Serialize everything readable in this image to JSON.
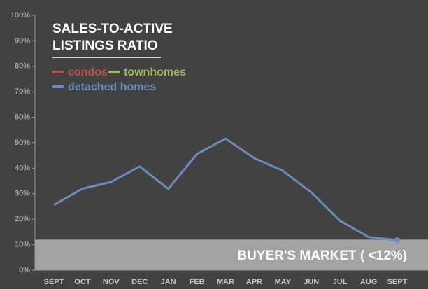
{
  "chart_data": {
    "type": "line",
    "title": [
      "SALES-TO-ACTIVE",
      "LISTINGS RATIO"
    ],
    "categories": [
      "SEPT",
      "OCT",
      "NOV",
      "DEC",
      "JAN",
      "FEB",
      "MAR",
      "APR",
      "MAY",
      "JUN",
      "JUL",
      "AUG",
      "SEPT"
    ],
    "series": [
      {
        "name": "condos",
        "color": "#c0504d",
        "values": [
          null,
          null,
          null,
          null,
          null,
          null,
          null,
          null,
          null,
          null,
          null,
          null,
          null
        ]
      },
      {
        "name": "townhomes",
        "color": "#9bbb59",
        "values": [
          null,
          null,
          null,
          null,
          null,
          null,
          null,
          null,
          null,
          null,
          null,
          null,
          null
        ]
      },
      {
        "name": "detached homes",
        "color": "#6a8dc0",
        "values": [
          25.6,
          32,
          34.6,
          40.7,
          31.9,
          45.6,
          51.6,
          44,
          39,
          30.5,
          19.4,
          13,
          11.8
        ]
      }
    ],
    "ylim": [
      0,
      100
    ],
    "yticks": [
      {
        "value": 0,
        "label": "0%"
      },
      {
        "value": 10,
        "label": "10%"
      },
      {
        "value": 20,
        "label": "20%"
      },
      {
        "value": 30,
        "label": "30%"
      },
      {
        "value": 40,
        "label": "40%"
      },
      {
        "value": 50,
        "label": "50%"
      },
      {
        "value": 60,
        "label": "60%"
      },
      {
        "value": 70,
        "label": "70%"
      },
      {
        "value": 80,
        "label": "80%"
      },
      {
        "value": 90,
        "label": "90%"
      },
      {
        "value": 100,
        "label": "100%"
      }
    ],
    "grid": false,
    "annotation": {
      "text": "BUYER'S MARKET ( <12%)",
      "threshold": 12,
      "color": "#b4b4b4"
    }
  }
}
